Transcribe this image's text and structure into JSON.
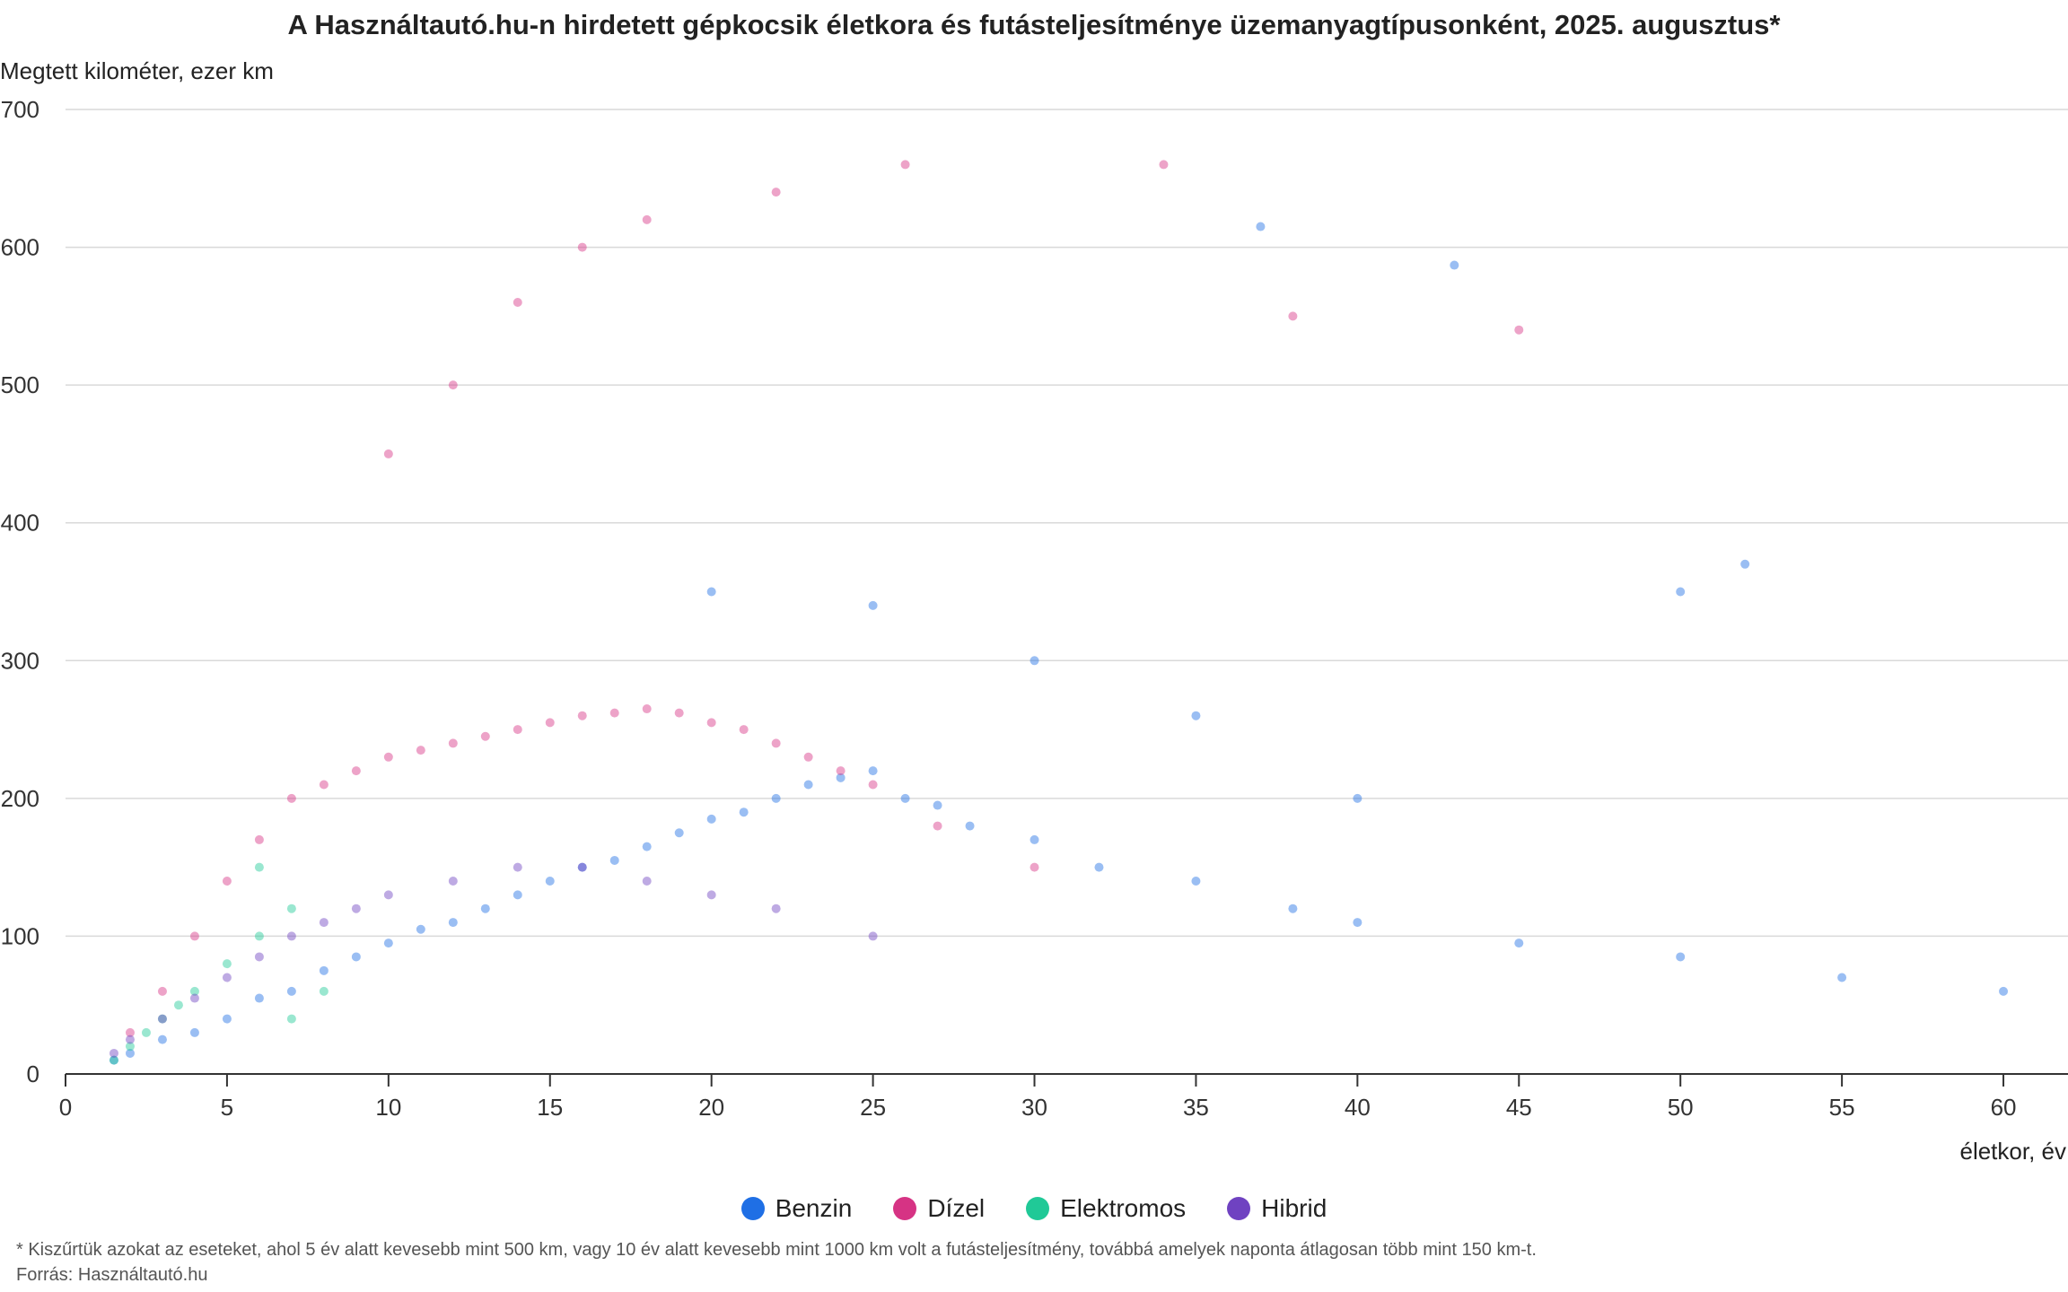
{
  "title": "A Használtautó.hu-n hirdetett gépkocsik életkora és futásteljesítménye üzemanyagtípusonként, 2025. augusztus*",
  "footnote": "* Kiszűrtük azokat az eseteket, ahol 5 év alatt kevesebb mint 500 km, vagy 10 év alatt kevesebb mint 1000 km volt a futásteljesítmény, továbbá amelyek naponta átlagosan több mint 150 km-t.",
  "source": "Forrás: Használtautó.hu",
  "chart_data": {
    "type": "scatter",
    "title": "A Használtautó.hu-n hirdetett gépkocsik életkora és futásteljesítménye üzemanyagtípusonként, 2025. augusztus*",
    "xlabel": "életkor, év",
    "ylabel": "Megtett kilométer, ezer km",
    "xlim": [
      0,
      62
    ],
    "ylim": [
      0,
      700
    ],
    "xticks": [
      0,
      5,
      10,
      15,
      20,
      25,
      30,
      35,
      40,
      45,
      50,
      55,
      60
    ],
    "yticks": [
      0,
      100,
      200,
      300,
      400,
      500,
      600,
      700
    ],
    "grid": "horizontal",
    "legend_position": "bottom",
    "series": [
      {
        "name": "Benzin",
        "color": "#1f6fe5",
        "points": [
          [
            1.5,
            10
          ],
          [
            2,
            15
          ],
          [
            3,
            25
          ],
          [
            4,
            30
          ],
          [
            5,
            40
          ],
          [
            6,
            55
          ],
          [
            7,
            60
          ],
          [
            8,
            75
          ],
          [
            9,
            85
          ],
          [
            10,
            95
          ],
          [
            11,
            105
          ],
          [
            12,
            110
          ],
          [
            13,
            120
          ],
          [
            14,
            130
          ],
          [
            15,
            140
          ],
          [
            16,
            150
          ],
          [
            17,
            155
          ],
          [
            18,
            165
          ],
          [
            19,
            175
          ],
          [
            20,
            185
          ],
          [
            21,
            190
          ],
          [
            22,
            200
          ],
          [
            23,
            210
          ],
          [
            24,
            215
          ],
          [
            25,
            220
          ],
          [
            26,
            200
          ],
          [
            27,
            195
          ],
          [
            28,
            180
          ],
          [
            30,
            170
          ],
          [
            32,
            150
          ],
          [
            35,
            140
          ],
          [
            38,
            120
          ],
          [
            40,
            110
          ],
          [
            45,
            95
          ],
          [
            50,
            85
          ],
          [
            55,
            70
          ],
          [
            60,
            60
          ],
          [
            20,
            350
          ],
          [
            25,
            340
          ],
          [
            30,
            300
          ],
          [
            35,
            260
          ],
          [
            40,
            200
          ],
          [
            50,
            350
          ],
          [
            52,
            370
          ],
          [
            37,
            615
          ],
          [
            43,
            587
          ]
        ]
      },
      {
        "name": "Dízel",
        "color": "#d63384",
        "points": [
          [
            2,
            30
          ],
          [
            3,
            60
          ],
          [
            4,
            100
          ],
          [
            5,
            140
          ],
          [
            6,
            170
          ],
          [
            7,
            200
          ],
          [
            8,
            210
          ],
          [
            9,
            220
          ],
          [
            10,
            230
          ],
          [
            11,
            235
          ],
          [
            12,
            240
          ],
          [
            13,
            245
          ],
          [
            14,
            250
          ],
          [
            15,
            255
          ],
          [
            16,
            260
          ],
          [
            17,
            262
          ],
          [
            18,
            265
          ],
          [
            19,
            262
          ],
          [
            20,
            255
          ],
          [
            21,
            250
          ],
          [
            22,
            240
          ],
          [
            23,
            230
          ],
          [
            24,
            220
          ],
          [
            25,
            210
          ],
          [
            27,
            180
          ],
          [
            30,
            150
          ],
          [
            10,
            450
          ],
          [
            12,
            500
          ],
          [
            14,
            560
          ],
          [
            16,
            600
          ],
          [
            18,
            620
          ],
          [
            22,
            640
          ],
          [
            26,
            660
          ],
          [
            34,
            660
          ],
          [
            45,
            540
          ],
          [
            38,
            550
          ]
        ]
      },
      {
        "name": "Elektromos",
        "color": "#20c997",
        "points": [
          [
            1.5,
            10
          ],
          [
            2,
            20
          ],
          [
            2.5,
            30
          ],
          [
            3,
            40
          ],
          [
            3.5,
            50
          ],
          [
            4,
            60
          ],
          [
            5,
            80
          ],
          [
            6,
            100
          ],
          [
            6,
            150
          ],
          [
            7,
            120
          ],
          [
            8,
            60
          ],
          [
            7,
            40
          ]
        ]
      },
      {
        "name": "Hibrid",
        "color": "#6f42c1",
        "points": [
          [
            1.5,
            15
          ],
          [
            2,
            25
          ],
          [
            3,
            40
          ],
          [
            4,
            55
          ],
          [
            5,
            70
          ],
          [
            6,
            85
          ],
          [
            7,
            100
          ],
          [
            8,
            110
          ],
          [
            9,
            120
          ],
          [
            10,
            130
          ],
          [
            12,
            140
          ],
          [
            14,
            150
          ],
          [
            16,
            150
          ],
          [
            18,
            140
          ],
          [
            20,
            130
          ],
          [
            22,
            120
          ],
          [
            25,
            100
          ]
        ]
      }
    ]
  }
}
